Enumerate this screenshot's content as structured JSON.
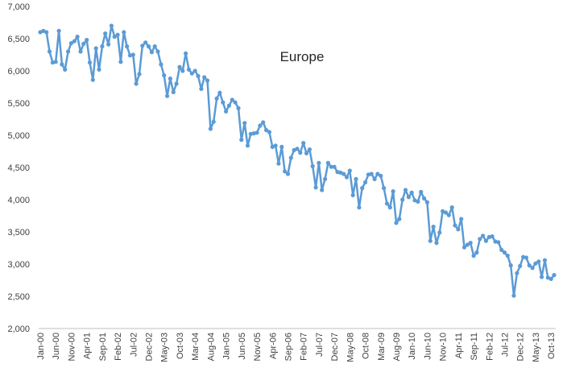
{
  "chart_data": {
    "type": "line",
    "title": "Europe",
    "xlabel": "",
    "ylabel": "",
    "ylim": [
      2000,
      7000
    ],
    "yticks": [
      "2,000",
      "2,500",
      "3,000",
      "3,500",
      "4,000",
      "4,500",
      "5,000",
      "5,500",
      "6,000",
      "6,500",
      "7,000"
    ],
    "grid": false,
    "legend": "none",
    "line_color": "#5B9BD5",
    "xtick_labels": [
      "Jan-00",
      "Jun-00",
      "Nov-00",
      "Apr-01",
      "Sep-01",
      "Feb-02",
      "Jul-02",
      "Dec-02",
      "May-03",
      "Oct-03",
      "Mar-04",
      "Aug-04",
      "Jan-05",
      "Jun-05",
      "Nov-05",
      "Apr-06",
      "Sep-06",
      "Feb-07",
      "Jul-07",
      "Dec-07",
      "May-08",
      "Oct-08",
      "Mar-09",
      "Aug-09",
      "Jan-10",
      "Jun-10",
      "Nov-10",
      "Apr-11",
      "Sep-11",
      "Feb-12",
      "Jul-12",
      "Dec-12",
      "May-13",
      "Oct-13"
    ],
    "series": [
      {
        "values": [
          6600,
          6620,
          6600,
          6300,
          6130,
          6140,
          6620,
          6100,
          6020,
          6300,
          6430,
          6460,
          6530,
          6300,
          6420,
          6480,
          6130,
          5860,
          6350,
          6020,
          6380,
          6580,
          6410,
          6700,
          6530,
          6560,
          6140,
          6600,
          6380,
          6240,
          6250,
          5800,
          5950,
          6390,
          6440,
          6380,
          6290,
          6380,
          6300,
          6100,
          5930,
          5610,
          5880,
          5670,
          5800,
          6060,
          6000,
          6270,
          6020,
          5960,
          6000,
          5920,
          5720,
          5900,
          5850,
          5100,
          5210,
          5570,
          5660,
          5510,
          5370,
          5460,
          5550,
          5510,
          5420,
          4930,
          5190,
          4840,
          5020,
          5030,
          5040,
          5150,
          5200,
          5080,
          5050,
          4820,
          4840,
          4560,
          4820,
          4440,
          4400,
          4650,
          4770,
          4790,
          4730,
          4880,
          4720,
          4780,
          4520,
          4190,
          4570,
          4150,
          4320,
          4570,
          4510,
          4510,
          4430,
          4420,
          4400,
          4350,
          4450,
          4070,
          4320,
          3880,
          4180,
          4270,
          4390,
          4400,
          4320,
          4400,
          4370,
          4180,
          3940,
          3880,
          4130,
          3640,
          3700,
          4000,
          4150,
          4040,
          4110,
          3990,
          3970,
          4120,
          4020,
          3960,
          3360,
          3580,
          3330,
          3490,
          3820,
          3800,
          3760,
          3880,
          3600,
          3540,
          3700,
          3260,
          3300,
          3330,
          3130,
          3180,
          3390,
          3440,
          3360,
          3420,
          3430,
          3350,
          3340,
          3220,
          3180,
          3130,
          2980,
          2510,
          2860,
          2970,
          3110,
          3100,
          2980,
          2940,
          3010,
          3040,
          2800,
          3060,
          2790,
          2770,
          2830
        ]
      }
    ]
  }
}
